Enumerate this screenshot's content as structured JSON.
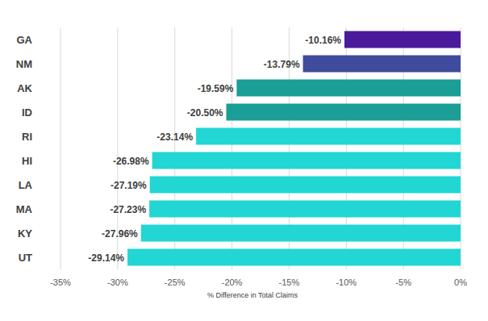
{
  "chart_data": {
    "type": "bar",
    "orientation": "horizontal",
    "categories": [
      "GA",
      "NM",
      "AK",
      "ID",
      "RI",
      "HI",
      "LA",
      "MA",
      "KY",
      "UT"
    ],
    "values": [
      -10.16,
      -13.79,
      -19.59,
      -20.5,
      -23.14,
      -26.98,
      -27.19,
      -27.23,
      -27.96,
      -29.14
    ],
    "value_labels": [
      "-10.16%",
      "-13.79%",
      "-19.59%",
      "-20.50%",
      "-23.14%",
      "-26.98%",
      "-27.19%",
      "-27.23%",
      "-27.96%",
      "-29.14%"
    ],
    "colors": [
      "#4a1a9c",
      "#3f4b9c",
      "#1a9e96",
      "#1a9e96",
      "#22d6d3",
      "#22d6d3",
      "#22d6d3",
      "#22d6d3",
      "#22d6d3",
      "#22d6d3"
    ],
    "x_label": "% Difference in Total Claims",
    "xlim": [
      -35,
      0
    ],
    "xticks": [
      {
        "value": -35,
        "label": "-35%"
      },
      {
        "value": -30,
        "label": "-30%"
      },
      {
        "value": -25,
        "label": "-25%"
      },
      {
        "value": -20,
        "label": "-20%"
      },
      {
        "value": -15,
        "label": "-15%"
      },
      {
        "value": -10,
        "label": "-10%"
      },
      {
        "value": -5,
        "label": "-5%"
      },
      {
        "value": 0,
        "label": "0%"
      }
    ],
    "grid": true,
    "data_labels": true
  }
}
